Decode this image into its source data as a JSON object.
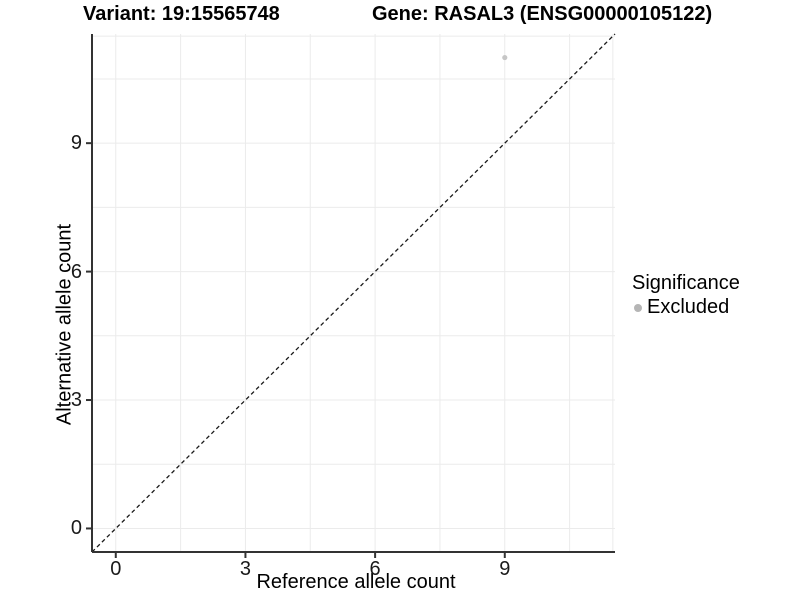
{
  "title": {
    "left": "Variant: 19:15565748",
    "right": "Gene: RASAL3 (ENSG00000105122)"
  },
  "chart_data": {
    "type": "scatter",
    "xlabel": "Reference allele count",
    "ylabel": "Alternative allele count",
    "xticks": [
      0,
      3,
      6,
      9
    ],
    "yticks": [
      0,
      3,
      6,
      9
    ],
    "xlim": [
      -0.55,
      11.55
    ],
    "ylim": [
      -0.55,
      11.55
    ],
    "grid_positions": [
      0,
      1.5,
      3,
      4.5,
      6,
      7.5,
      9,
      10.5,
      11.5
    ],
    "grid_on": true,
    "series": [
      {
        "name": "Excluded",
        "color": "#c6c6c6",
        "points": [
          {
            "x": 9,
            "y": 11
          }
        ]
      }
    ],
    "identity_line": {
      "style": "dashed",
      "color": "#1a1a1a",
      "from": {
        "x": -0.55,
        "y": -0.55
      },
      "to": {
        "x": 11.55,
        "y": 11.55
      }
    },
    "legend": {
      "title": "Significance",
      "position": "right",
      "entries": [
        {
          "label": "Excluded",
          "color": "#b5b5b5"
        }
      ]
    },
    "colors": {
      "grid": "#ebebeb",
      "axis_line": "#333333",
      "tick_mark": "#333333",
      "tick_text": "#1a1a1a"
    }
  }
}
